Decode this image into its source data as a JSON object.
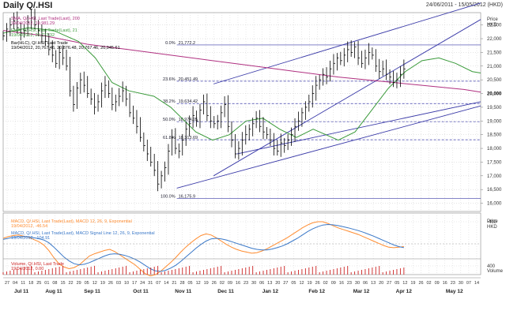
{
  "header": {
    "title": "Daily Q/.HSI",
    "date_range": "24/06/2011 - 15/05/2012 (HKD)"
  },
  "colors": {
    "price": "#000000",
    "sma200": "#b03080",
    "ema21": "#3a9a3a",
    "channel": "#3a3aa8",
    "fib": "#3a3aa8",
    "macd": "#ff8c30",
    "signal": "#3a78c8",
    "volume": "#cc2222",
    "grid": "#c8c8c8"
  },
  "chart_data": [
    {
      "type": "line",
      "name": "price-panel",
      "series": [
        {
          "name": "Bar(HLC), Q/.HSI, Last Trade",
          "close": [
            22100,
            22350,
            22500,
            22650,
            22400,
            22200,
            22300,
            22600,
            22750,
            22500,
            22300,
            22100,
            21900,
            21600,
            21400,
            21100,
            21500,
            21300,
            21000,
            20100,
            19600,
            20200,
            20500,
            20300,
            20000,
            19800,
            19500,
            19700,
            20100,
            20300,
            20000,
            19600,
            19700,
            19900,
            20100,
            19800,
            19300,
            19100,
            18800,
            18400,
            18100,
            17800,
            17500,
            17200,
            16700,
            17000,
            17300,
            17900,
            18400,
            18000,
            17900,
            18300,
            18700,
            18900,
            19200,
            19000,
            19400,
            19700,
            19200,
            19000,
            18900,
            19000,
            19300,
            19600,
            18800,
            18300,
            17800,
            18000,
            18300,
            18500,
            18700,
            18900,
            19100,
            18800,
            18600,
            18500,
            18300,
            18000,
            17900,
            18200,
            18100,
            18300,
            18500,
            18800,
            19000,
            19300,
            19500,
            19700,
            20000,
            20300,
            20500,
            20700,
            20600,
            20900,
            21100,
            21300,
            21200,
            21400,
            21600,
            21500,
            21700,
            21300,
            21100,
            21300,
            21500,
            21400,
            21000,
            20800,
            20900,
            20700,
            20600,
            20400,
            20500,
            20700,
            20900
          ],
          "summary": "19/04/2012, 20,767.46, 20,876.48, 20,767.46, 20,945.61"
        },
        {
          "name": "SMA, Q/.HSI, Last Trade(Last), 200",
          "points": [
            [
              0,
              22300
            ],
            [
              10,
              22100
            ],
            [
              20,
              21800
            ],
            [
              30,
              21600
            ],
            [
              40,
              21400
            ],
            [
              50,
              21200
            ],
            [
              60,
              21000
            ],
            [
              70,
              20800
            ],
            [
              80,
              20600
            ],
            [
              90,
              20450
            ],
            [
              100,
              20300
            ],
            [
              110,
              20150
            ],
            [
              114,
              20050
            ]
          ],
          "summary": "19/04/2012, 19,981.29"
        },
        {
          "name": "EMA, Q/.HSI, Last Trade(Last), 21",
          "points": [
            [
              0,
              22200
            ],
            [
              6,
              22400
            ],
            [
              12,
              22300
            ],
            [
              18,
              21900
            ],
            [
              22,
              21300
            ],
            [
              26,
              20400
            ],
            [
              30,
              20100
            ],
            [
              36,
              19900
            ],
            [
              40,
              19500
            ],
            [
              46,
              18600
            ],
            [
              50,
              18300
            ],
            [
              54,
              18500
            ],
            [
              58,
              19000
            ],
            [
              62,
              19100
            ],
            [
              66,
              18700
            ],
            [
              70,
              18400
            ],
            [
              74,
              18700
            ],
            [
              80,
              18300
            ],
            [
              84,
              18600
            ],
            [
              88,
              19400
            ],
            [
              92,
              20200
            ],
            [
              96,
              20800
            ],
            [
              100,
              21200
            ],
            [
              104,
              21300
            ],
            [
              108,
              21100
            ],
            [
              112,
              20800
            ],
            [
              114,
              20750
            ]
          ],
          "summary": "19/04/2012, 20,772.32"
        }
      ],
      "fib_levels": [
        {
          "label": "0.0%",
          "value": 21772.2,
          "value_text": "21,772.2"
        },
        {
          "label": "23.6%",
          "value": 20451.49,
          "value_text": "20,451.49"
        },
        {
          "label": "38.2%",
          "value": 19634.42,
          "value_text": "19,634.42"
        },
        {
          "label": "50.0%",
          "value": 18974.05,
          "value_text": "18,974.05"
        },
        {
          "label": "61.8%",
          "value": 18313.69,
          "value_text": "18,313.69"
        },
        {
          "label": "100.0%",
          "value": 16175.9,
          "value_text": "16,175.9"
        }
      ],
      "channel_lines": [
        {
          "from": [
            63,
            17000
          ],
          "to": [
            143,
            22700
          ]
        },
        {
          "from": [
            63,
            20350
          ],
          "to": [
            143,
            23300
          ]
        },
        {
          "from": [
            70,
            17800
          ],
          "to": [
            143,
            19700
          ]
        },
        {
          "from": [
            52,
            16550
          ],
          "to": [
            143,
            19550
          ]
        },
        {
          "from": [
            0,
            22600
          ],
          "to": [
            143,
            19980
          ]
        }
      ],
      "y_axis": {
        "unit": "Price\nHKD",
        "ticks": [
          16000,
          16500,
          17000,
          17500,
          18000,
          18500,
          19000,
          19500,
          20000,
          20500,
          21000,
          21500,
          22000,
          22500
        ],
        "tick_labels": [
          "16,000",
          "16,500",
          "17,000",
          "17,500",
          "18,000",
          "18,500",
          "19,000",
          "19,500",
          "20,000",
          "20,500",
          "21,000",
          "21,500",
          "22,000",
          "22,500"
        ],
        "highlight": "20,000"
      }
    },
    {
      "type": "line",
      "name": "macd-panel",
      "series": [
        {
          "name": "MACD, Q/.HSI, Last Trade(Last), MACD 12, 26, 9, Exponential",
          "summary": "19/04/2012, -46.54",
          "values": [
            100,
            130,
            150,
            160,
            140,
            120,
            80,
            40,
            -20,
            -120,
            -250,
            -360,
            -420,
            -450,
            -430,
            -380,
            -300,
            -220,
            -180,
            -150,
            -120,
            -100,
            -140,
            -200,
            -260,
            -320,
            -380,
            -460,
            -540,
            -580,
            -560,
            -500,
            -420,
            -340,
            -250,
            -150,
            -60,
            20,
            90,
            150,
            180,
            160,
            110,
            50,
            -10,
            -60,
            -100,
            -130,
            -150,
            -170,
            -160,
            -130,
            -90,
            -40,
            10,
            60,
            110,
            170,
            230,
            290,
            340,
            380,
            400,
            400,
            370,
            330,
            290,
            260,
            230,
            200,
            170,
            130,
            90,
            50,
            10,
            -30,
            -60,
            -70,
            -60,
            -50
          ]
        },
        {
          "name": "MACD, Q/.HSI, Last Trade(Last), MACD Signal Line 12, 26, 9, Exponential",
          "summary": "19/04/2012, -104.91",
          "values": [
            80,
            100,
            120,
            130,
            130,
            125,
            110,
            95,
            70,
            20,
            -60,
            -150,
            -240,
            -310,
            -360,
            -380,
            -370,
            -340,
            -300,
            -260,
            -220,
            -190,
            -180,
            -190,
            -210,
            -240,
            -280,
            -330,
            -390,
            -450,
            -490,
            -500,
            -480,
            -440,
            -390,
            -320,
            -240,
            -160,
            -80,
            -10,
            50,
            90,
            100,
            90,
            70,
            40,
            10,
            -20,
            -50,
            -80,
            -100,
            -110,
            -110,
            -95,
            -70,
            -40,
            0,
            50,
            100,
            160,
            220,
            270,
            310,
            340,
            350,
            345,
            330,
            310,
            290,
            265,
            240,
            210,
            175,
            140,
            100,
            60,
            20,
            -20,
            -50,
            -70
          ]
        }
      ],
      "y_axis": {
        "unit": "Price\nHKD",
        "ticks": [
          -400,
          400
        ],
        "tick_labels": [
          "-400",
          "400"
        ]
      }
    },
    {
      "type": "bar",
      "name": "volume-panel",
      "series": [
        {
          "name": "Volume, Q/.HSI, Last Trade",
          "summary": "19/04/2012, 0.00"
        }
      ],
      "y_axis": {
        "unit": "Volume"
      }
    }
  ],
  "x_axis": {
    "day_ticks": [
      "27",
      "04",
      "11",
      "18",
      "25",
      "01",
      "08",
      "15",
      "22",
      "29",
      "05",
      "12",
      "19",
      "26",
      "03",
      "10",
      "17",
      "24",
      "31",
      "07",
      "14",
      "21",
      "28",
      "05",
      "12",
      "19",
      "26",
      "02",
      "09",
      "16",
      "23",
      "30",
      "06",
      "13",
      "20",
      "27",
      "05",
      "12",
      "19",
      "26",
      "02",
      "09",
      "16",
      "23",
      "30",
      "06",
      "13",
      "20",
      "27",
      "05",
      "12",
      "19",
      "26",
      "02",
      "09",
      "16",
      "23",
      "30",
      "07",
      "14"
    ],
    "months": [
      "Jul 11",
      "Aug 11",
      "Sep 11",
      "Oct 11",
      "Nov 11",
      "Dec 11",
      "Jan 12",
      "Feb 12",
      "Mar 12",
      "Apr 12",
      "May 12"
    ]
  }
}
